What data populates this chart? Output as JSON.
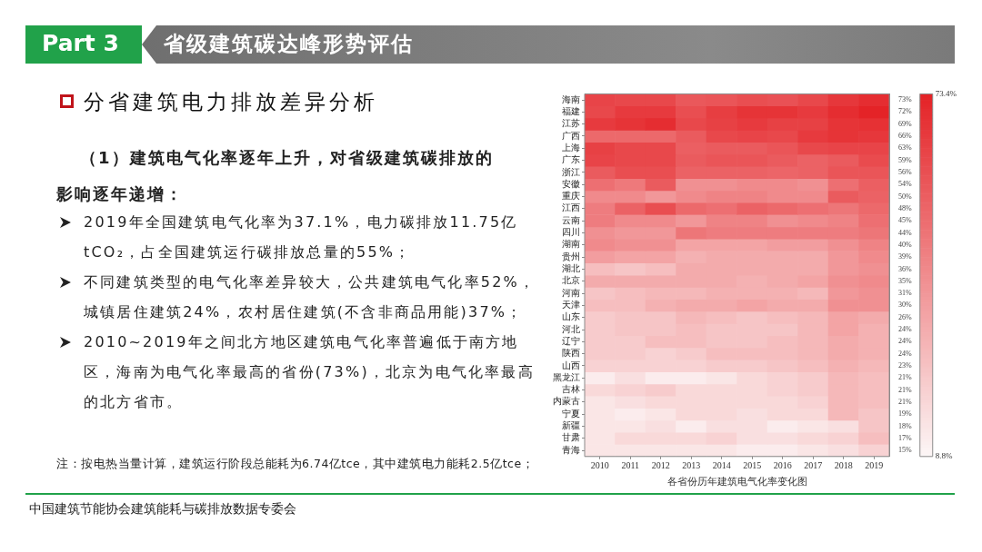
{
  "chart_data": {
    "type": "heatmap",
    "title": "省级建筑碳达峰形势评估",
    "subtitle": "分省建筑电力排放差异分析",
    "xlabel": "各省份历年建筑电气化率变化图",
    "annotations": [
      "Part 3",
      "（1）建筑电气化率逐年上升，对省级建筑碳排放的影响逐年递增：",
      "2019年全国建筑电气化率为37.1%，电力碳排放11.75亿tCO₂，占全国建筑运行碳排放总量的55%；",
      "不同建筑类型的电气化率差异较大，公共建筑电气化率52%，城镇居住建筑24%，农村居住建筑(不含非商品用能)37%；",
      "2010~2019年之间北方地区建筑电气化率普遍低于南方地区，海南为电气化率最高的省份(73%)，北京为电气化率最高的北方省市。",
      "注：按电热当量计算，建筑运行阶段总能耗为6.74亿tce，其中建筑电力能耗2.5亿tce；",
      "中国建筑节能协会建筑能耗与碳排放数据专委会"
    ],
    "categories": [
      "2010",
      "2011",
      "2012",
      "2013",
      "2014",
      "2015",
      "2016",
      "2017",
      "2018",
      "2019"
    ],
    "y_categories": [
      "海南",
      "福建",
      "江苏",
      "广西",
      "上海",
      "广东",
      "浙江",
      "安徽",
      "重庆",
      "江西",
      "云南",
      "四川",
      "湖南",
      "贵州",
      "湖北",
      "北京",
      "河南",
      "天津",
      "山东",
      "河北",
      "辽宁",
      "陕西",
      "山西",
      "黑龙江",
      "吉林",
      "内蒙古",
      "宁夏",
      "新疆",
      "甘肃",
      "青海"
    ],
    "y2_categories": [
      "73%",
      "72%",
      "69%",
      "66%",
      "63%",
      "59%",
      "56%",
      "54%",
      "50%",
      "48%",
      "45%",
      "44%",
      "40%",
      "39%",
      "36%",
      "35%",
      "31%",
      "30%",
      "26%",
      "24%",
      "24%",
      "24%",
      "23%",
      "21%",
      "21%",
      "21%",
      "19%",
      "18%",
      "17%",
      "15%"
    ],
    "cells": [
      [
        63,
        62,
        62,
        57,
        58,
        60,
        59,
        62,
        67,
        70
      ],
      [
        62,
        66,
        66,
        60,
        65,
        68,
        68,
        66,
        70,
        73
      ],
      [
        66,
        68,
        70,
        62,
        64,
        66,
        64,
        64,
        68,
        69
      ],
      [
        52,
        52,
        52,
        56,
        62,
        63,
        62,
        66,
        68,
        67
      ],
      [
        64,
        62,
        62,
        55,
        56,
        56,
        58,
        62,
        63,
        63
      ],
      [
        63,
        62,
        62,
        56,
        58,
        58,
        56,
        54,
        56,
        61
      ],
      [
        56,
        60,
        60,
        54,
        54,
        54,
        53,
        54,
        58,
        58
      ],
      [
        50,
        47,
        56,
        40,
        40,
        42,
        42,
        40,
        50,
        55
      ],
      [
        42,
        42,
        38,
        42,
        44,
        44,
        42,
        42,
        56,
        54
      ],
      [
        46,
        54,
        60,
        52,
        50,
        54,
        52,
        50,
        48,
        52
      ],
      [
        46,
        42,
        42,
        38,
        44,
        44,
        40,
        42,
        44,
        50
      ],
      [
        40,
        38,
        38,
        48,
        46,
        46,
        46,
        46,
        46,
        48
      ],
      [
        42,
        40,
        40,
        34,
        34,
        34,
        36,
        36,
        40,
        44
      ],
      [
        36,
        34,
        34,
        30,
        32,
        32,
        32,
        32,
        38,
        42
      ],
      [
        26,
        24,
        26,
        32,
        32,
        32,
        32,
        32,
        38,
        40
      ],
      [
        32,
        32,
        32,
        32,
        32,
        30,
        32,
        34,
        40,
        42
      ],
      [
        24,
        26,
        28,
        28,
        30,
        30,
        30,
        28,
        38,
        40
      ],
      [
        26,
        26,
        30,
        32,
        32,
        34,
        32,
        32,
        40,
        40
      ],
      [
        22,
        24,
        24,
        28,
        26,
        24,
        26,
        28,
        34,
        32
      ],
      [
        22,
        24,
        24,
        26,
        24,
        24,
        24,
        28,
        34,
        30
      ],
      [
        22,
        22,
        26,
        26,
        24,
        24,
        26,
        28,
        32,
        30
      ],
      [
        22,
        22,
        20,
        22,
        26,
        26,
        26,
        28,
        32,
        30
      ],
      [
        20,
        20,
        20,
        20,
        22,
        22,
        24,
        26,
        30,
        28
      ],
      [
        12,
        16,
        12,
        12,
        14,
        18,
        20,
        22,
        28,
        26
      ],
      [
        18,
        20,
        22,
        18,
        18,
        18,
        20,
        22,
        28,
        26
      ],
      [
        14,
        16,
        18,
        18,
        18,
        18,
        18,
        20,
        28,
        26
      ],
      [
        14,
        12,
        14,
        18,
        18,
        16,
        18,
        18,
        28,
        24
      ],
      [
        14,
        14,
        16,
        12,
        16,
        16,
        12,
        14,
        16,
        24
      ],
      [
        14,
        18,
        18,
        18,
        20,
        16,
        16,
        18,
        20,
        26
      ],
      [
        14,
        14,
        14,
        14,
        14,
        12,
        12,
        14,
        16,
        20
      ]
    ],
    "clim": [
      8.8,
      73.4
    ],
    "cticks": [
      {
        "value": 8.8,
        "label": "8.8%"
      },
      {
        "value": 73.4,
        "label": "73.4%"
      }
    ]
  }
}
